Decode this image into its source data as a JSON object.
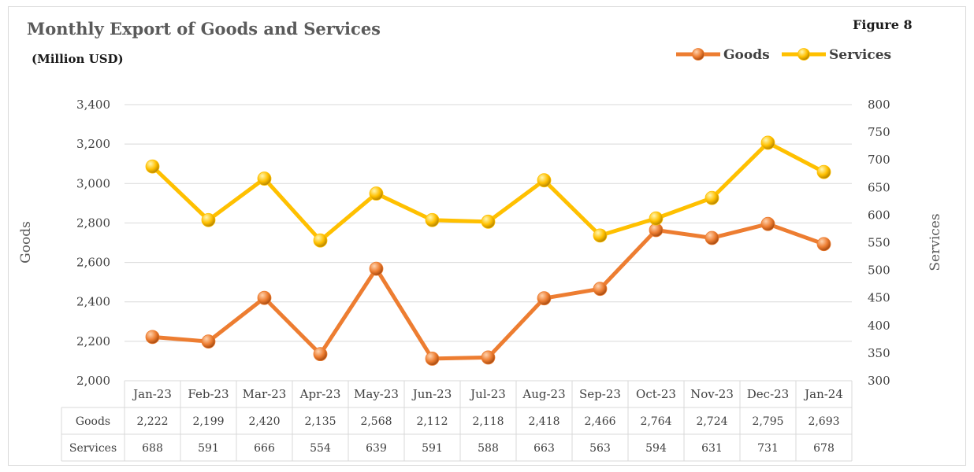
{
  "header": {
    "title": "Monthly Export of Goods and Services",
    "subtitle": "(Million USD)",
    "figure_label": "Figure 8"
  },
  "colors": {
    "goods": "#ED7D31",
    "services": "#FFC000",
    "grid": "#d9d9d9"
  },
  "chart_data": {
    "type": "line",
    "title": "Monthly Export of Goods and Services",
    "subtitle": "(Million USD)",
    "categories": [
      "Jan-23",
      "Feb-23",
      "Mar-23",
      "Apr-23",
      "May-23",
      "Jun-23",
      "Jul-23",
      "Aug-23",
      "Sep-23",
      "Oct-23",
      "Nov-23",
      "Dec-23",
      "Jan-24"
    ],
    "ylabel": "Goods",
    "y2label": "Services",
    "ylim": [
      2000,
      3400
    ],
    "y2lim": [
      300,
      800
    ],
    "y_ticks": [
      "2,000",
      "2,200",
      "2,400",
      "2,600",
      "2,800",
      "3,000",
      "3,200",
      "3,400"
    ],
    "y2_ticks": [
      "300",
      "350",
      "400",
      "450",
      "500",
      "550",
      "600",
      "650",
      "700",
      "750",
      "800"
    ],
    "grid": true,
    "legend": "top-right",
    "data_table": true,
    "series": [
      {
        "name": "Goods",
        "axis": "left",
        "values": [
          2222,
          2199,
          2420,
          2135,
          2568,
          2112,
          2118,
          2418,
          2466,
          2764,
          2724,
          2795,
          2693
        ],
        "labels": [
          "2,222",
          "2,199",
          "2,420",
          "2,135",
          "2,568",
          "2,112",
          "2,118",
          "2,418",
          "2,466",
          "2,764",
          "2,724",
          "2,795",
          "2,693"
        ]
      },
      {
        "name": "Services",
        "axis": "right",
        "values": [
          688,
          591,
          666,
          554,
          639,
          591,
          588,
          663,
          563,
          594,
          631,
          731,
          678
        ],
        "labels": [
          "688",
          "591",
          "666",
          "554",
          "639",
          "591",
          "588",
          "663",
          "563",
          "594",
          "631",
          "731",
          "678"
        ]
      }
    ]
  }
}
